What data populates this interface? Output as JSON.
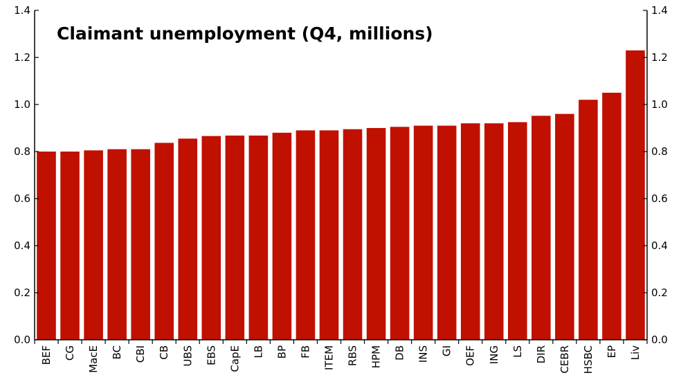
{
  "chart_data": {
    "type": "bar",
    "title": "Claimant unemployment (Q4, millions)",
    "xlabel": "",
    "ylabel": "",
    "ylim": [
      0,
      1.4
    ],
    "yticks": [
      "0.0",
      "0.2",
      "0.4",
      "0.6",
      "0.8",
      "1.0",
      "1.2",
      "1.4"
    ],
    "yticks_right": [
      "0.0",
      "0.2",
      "0.4",
      "0.6",
      "0.8",
      "1.0",
      "1.2",
      "1.4"
    ],
    "grid": false,
    "bar_color": "#c01000",
    "categories": [
      "BEF",
      "CG",
      "MacE",
      "BC",
      "CBI",
      "CB",
      "UBS",
      "EBS",
      "CapE",
      "LB",
      "BP",
      "FB",
      "ITEM",
      "RBS",
      "HPM",
      "DB",
      "INS",
      "GI",
      "OEF",
      "ING",
      "LS",
      "DIR",
      "CEBR",
      "HSBC",
      "EP",
      "Liv"
    ],
    "values": [
      0.8,
      0.8,
      0.805,
      0.81,
      0.81,
      0.837,
      0.855,
      0.866,
      0.868,
      0.868,
      0.88,
      0.89,
      0.89,
      0.895,
      0.9,
      0.905,
      0.91,
      0.91,
      0.92,
      0.92,
      0.925,
      0.952,
      0.96,
      1.02,
      1.05,
      1.23
    ]
  }
}
